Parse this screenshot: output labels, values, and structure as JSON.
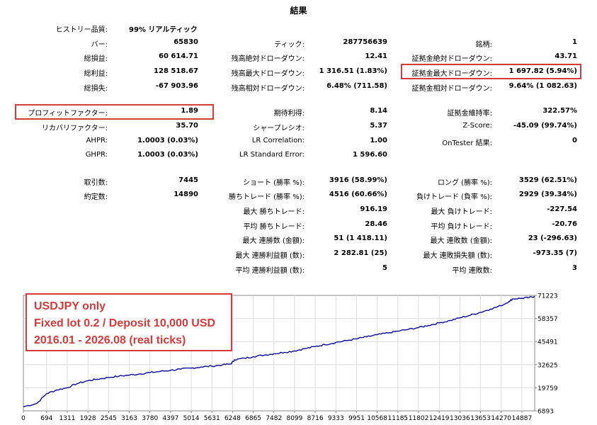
{
  "title": "結果",
  "rows": [
    [
      [
        "ヒストリー品質:",
        "99% リアルティック"
      ],
      [
        "",
        ""
      ],
      [
        "",
        ""
      ]
    ],
    [
      [
        "バー:",
        "65830"
      ],
      [
        "ティック:",
        "287756639"
      ],
      [
        "銘柄:",
        "1"
      ]
    ],
    [
      [
        "総損益:",
        "60 614.71"
      ],
      [
        "残高絶対ドローダウン:",
        "12.41"
      ],
      [
        "証拠金絶対ドローダウン:",
        "43.71"
      ]
    ],
    [
      [
        "総利益:",
        "128 518.67"
      ],
      [
        "残高最大ドローダウン:",
        "1 316.51 (1.83%)"
      ],
      [
        "証拠金最大ドローダウン:",
        "1 697.82 (5.94%)"
      ]
    ],
    [
      [
        "総損失:",
        "-67 903.96"
      ],
      [
        "残高相対ドローダウン:",
        "6.48% (711.58)"
      ],
      [
        "証拠金相対ドローダウン:",
        "9.64% (1 082.63)"
      ]
    ],
    [
      [
        "プロフィットファクター:",
        "1.89"
      ],
      [
        "期待利得:",
        "8.14"
      ],
      [
        "証拠金維持率:",
        "322.57%"
      ]
    ],
    [
      [
        "リカバリファクター:",
        "35.70"
      ],
      [
        "シャープレシオ:",
        "5.37"
      ],
      [
        "Z-Score:",
        "-45.09 (99.74%)"
      ]
    ],
    [
      [
        "AHPR:",
        "1.0003 (0.03%)"
      ],
      [
        "LR Correlation:",
        "1.00"
      ],
      [
        "OnTester 結果:",
        "0"
      ]
    ],
    [
      [
        "GHPR:",
        "1.0003 (0.03%)"
      ],
      [
        "LR Standard Error:",
        "1 596.60"
      ],
      [
        "",
        ""
      ]
    ],
    [
      [
        "取引数:",
        "7445"
      ],
      [
        "ショート (勝率 %):",
        "3916 (58.99%)"
      ],
      [
        "ロング (勝率 %):",
        "3529 (62.51%)"
      ]
    ],
    [
      [
        "約定数:",
        "14890"
      ],
      [
        "勝ちトレード (勝率 %):",
        "4516 (60.66%)"
      ],
      [
        "負けトレード (負率 %):",
        "2929 (39.34%)"
      ]
    ],
    [
      [
        "",
        ""
      ],
      [
        "最大 勝ちトレード:",
        "916.19"
      ],
      [
        "最大 負けトレード:",
        "-227.54"
      ]
    ],
    [
      [
        "",
        ""
      ],
      [
        "平均 勝ちトレード:",
        "28.46"
      ],
      [
        "平均 負けトレード:",
        "-20.76"
      ]
    ],
    [
      [
        "",
        ""
      ],
      [
        "最大 連勝数 (金額):",
        "51 (1 418.11)"
      ],
      [
        "最大 連敗数 (金額):",
        "23 (-296.63)"
      ]
    ],
    [
      [
        "",
        ""
      ],
      [
        "最大 連勝利益額 (数):",
        "2 282.81 (25)"
      ],
      [
        "最大 連敗損失額 (数):",
        "-973.35 (7)"
      ]
    ],
    [
      [
        "",
        ""
      ],
      [
        "平均 連勝利益額 (数):",
        "5"
      ],
      [
        "平均 連敗数:",
        "3"
      ]
    ]
  ],
  "note": {
    "line1": "USDJPY only",
    "line2": "Fixed lot 0.2 / Deposit 10,000 USD",
    "line3": "2016.01 - 2026.08 (real ticks)"
  },
  "chart_data": {
    "type": "line",
    "title": "",
    "xlabel": "",
    "ylabel": "",
    "x_ticks": [
      "0",
      "694",
      "1311",
      "1928",
      "2545",
      "3163",
      "3780",
      "4397",
      "5014",
      "5631",
      "6248",
      "6865",
      "7482",
      "8099",
      "8716",
      "9333",
      "9951",
      "10568",
      "11185",
      "11802",
      "12419",
      "13036",
      "13653",
      "14270",
      "14887"
    ],
    "y_ticks": [
      "6893",
      "19759",
      "32625",
      "45491",
      "58357",
      "71223"
    ],
    "xlim": [
      0,
      15270
    ],
    "ylim": [
      6893,
      71223
    ],
    "line_color": "#0a0a9a",
    "grid": true,
    "series": [
      {
        "x": [
          0,
          400,
          694,
          1000,
          1311,
          1600,
          1928,
          2200,
          2545,
          2850,
          3163,
          3500,
          3780,
          4100,
          4397,
          4700,
          5014,
          5300,
          5631,
          5950,
          6200,
          6300,
          6600,
          6865,
          7200,
          7482,
          7800,
          8099,
          8400,
          8716,
          9000,
          9333,
          9650,
          9951,
          10250,
          10568,
          10900,
          11185,
          11500,
          11802,
          12100,
          12419,
          12750,
          13036,
          13350,
          13653,
          13950,
          14270,
          14500,
          14620,
          14887,
          15100,
          15270
        ],
        "values": [
          9200,
          11000,
          16500,
          18500,
          19800,
          22000,
          23700,
          24500,
          25500,
          26200,
          26800,
          27500,
          28200,
          28900,
          29500,
          30100,
          30700,
          31300,
          31800,
          32500,
          33000,
          35300,
          36200,
          37100,
          38000,
          38700,
          39500,
          40300,
          41500,
          42700,
          43800,
          45000,
          46000,
          47000,
          48100,
          49300,
          50300,
          51300,
          52300,
          53300,
          54500,
          55900,
          57200,
          58700,
          60200,
          61800,
          63600,
          65500,
          67800,
          69300,
          69600,
          70000,
          70700
        ]
      }
    ]
  }
}
